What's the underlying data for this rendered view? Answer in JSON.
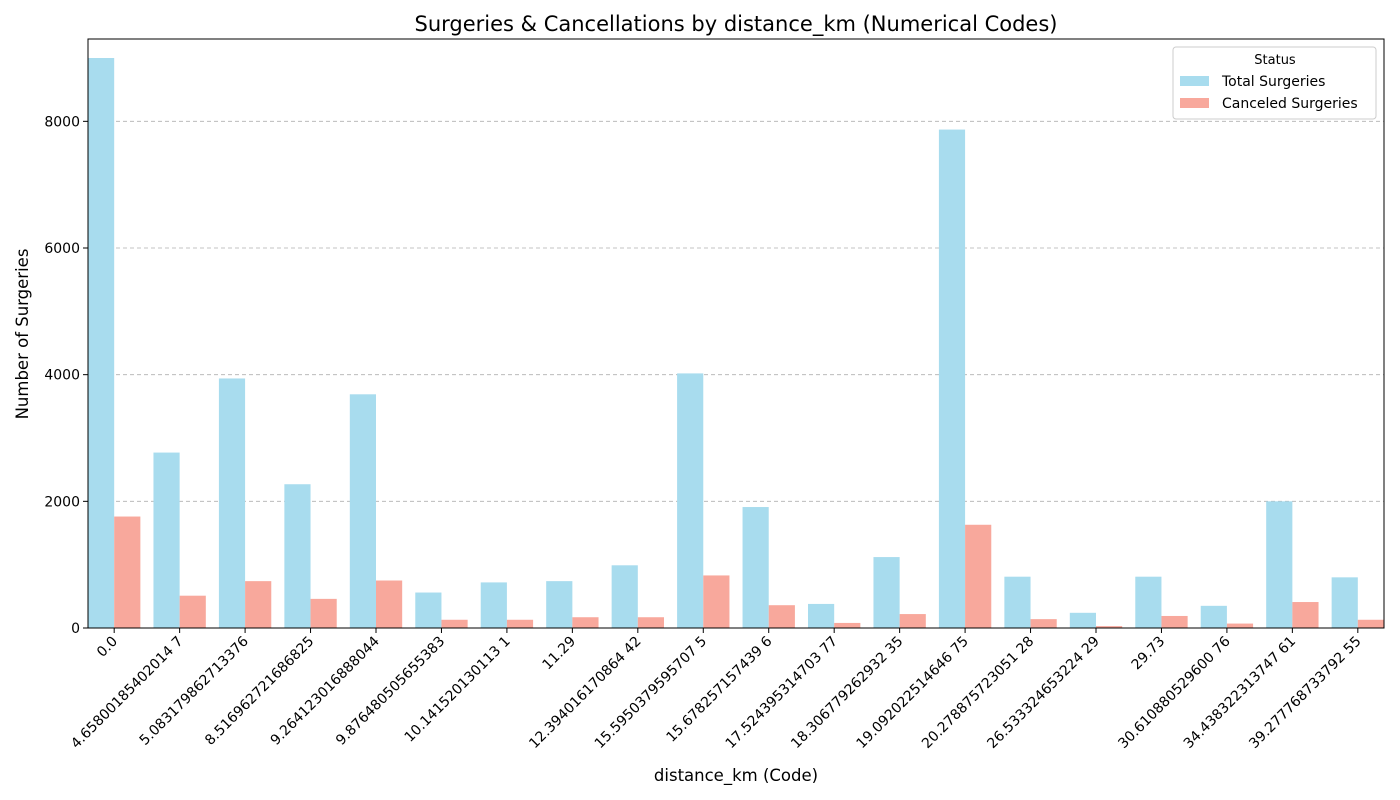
{
  "chart_data": {
    "type": "bar",
    "title": "Surgeries & Cancellations by distance_km (Numerical Codes)",
    "xlabel": "distance_km (Code)",
    "ylabel": "Number of Surgeries",
    "ylim": [
      0,
      9300
    ],
    "yticks": [
      0,
      2000,
      4000,
      6000,
      8000
    ],
    "grid": "y-dashed",
    "legend": {
      "title": "Status",
      "position": "top-right"
    },
    "categories": [
      "0.0",
      "4.65800185402014 7",
      "5.083179862713376",
      "8.516962721686825",
      "9.264123016888044",
      "9.876480505655383",
      "10.141520130113 1",
      "11.29",
      "12.394016170864 42",
      "15.5950379595707 5",
      "15.678257157439 6",
      "17.524395314703 77",
      "18.306779262932 35",
      "19.092022514646 75",
      "20.278875723051 28",
      "26.533324653224 29",
      "29.73",
      "30.610880529600 76",
      "34.438322313747 61",
      "39.277768733792 55"
    ],
    "series": [
      {
        "name": "Total Surgeries",
        "color": "#a8dcee",
        "values": [
          9000,
          2770,
          3940,
          2270,
          3690,
          560,
          720,
          740,
          990,
          4020,
          1910,
          380,
          1120,
          7870,
          810,
          240,
          810,
          350,
          2000,
          800
        ]
      },
      {
        "name": "Canceled Surgeries",
        "color": "#f8a89c",
        "values": [
          1760,
          510,
          740,
          460,
          750,
          130,
          130,
          170,
          170,
          830,
          360,
          80,
          220,
          1630,
          140,
          30,
          190,
          70,
          410,
          130
        ]
      }
    ]
  }
}
